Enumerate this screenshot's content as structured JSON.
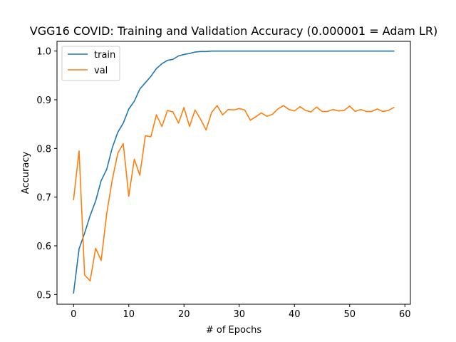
{
  "chart_data": {
    "type": "line",
    "title": "VGG16 COVID: Training and Validation Accuracy (0.000001 = Adam LR)",
    "xlabel": "# of Epochs",
    "ylabel": "Accuracy",
    "xlim": [
      -3,
      61
    ],
    "ylim": [
      0.48,
      1.02
    ],
    "xticks": [
      0,
      10,
      20,
      30,
      40,
      50,
      60
    ],
    "yticks": [
      0.5,
      0.6,
      0.7,
      0.8,
      0.9,
      1.0
    ],
    "xtick_labels": [
      "0",
      "10",
      "20",
      "30",
      "40",
      "50",
      "60"
    ],
    "ytick_labels": [
      "0.5",
      "0.6",
      "0.7",
      "0.8",
      "0.9",
      "1.0"
    ],
    "grid": false,
    "legend_position": "top-left",
    "x": [
      0,
      1,
      2,
      3,
      4,
      5,
      6,
      7,
      8,
      9,
      10,
      11,
      12,
      13,
      14,
      15,
      16,
      17,
      18,
      19,
      20,
      21,
      22,
      23,
      24,
      25,
      26,
      27,
      28,
      29,
      30,
      31,
      32,
      33,
      34,
      35,
      36,
      37,
      38,
      39,
      40,
      41,
      42,
      43,
      44,
      45,
      46,
      47,
      48,
      49,
      50,
      51,
      52,
      53,
      54,
      55,
      56,
      57,
      58
    ],
    "series": [
      {
        "name": "train",
        "color": "#1f77b4",
        "values": [
          0.503,
          0.594,
          0.626,
          0.662,
          0.692,
          0.734,
          0.757,
          0.801,
          0.833,
          0.852,
          0.881,
          0.897,
          0.922,
          0.935,
          0.948,
          0.964,
          0.974,
          0.981,
          0.983,
          0.99,
          0.993,
          0.995,
          0.998,
          0.999,
          0.999,
          1.0,
          1.0,
          1.0,
          1.0,
          1.0,
          1.0,
          1.0,
          1.0,
          1.0,
          1.0,
          1.0,
          1.0,
          1.0,
          1.0,
          1.0,
          1.0,
          1.0,
          1.0,
          1.0,
          1.0,
          1.0,
          1.0,
          1.0,
          1.0,
          1.0,
          1.0,
          1.0,
          1.0,
          1.0,
          1.0,
          1.0,
          1.0,
          1.0,
          1.0
        ]
      },
      {
        "name": "val",
        "color": "#ff7f0e",
        "values": [
          0.695,
          0.795,
          0.54,
          0.528,
          0.595,
          0.57,
          0.666,
          0.735,
          0.79,
          0.81,
          0.702,
          0.778,
          0.745,
          0.826,
          0.824,
          0.869,
          0.845,
          0.878,
          0.875,
          0.852,
          0.884,
          0.845,
          0.879,
          0.86,
          0.838,
          0.874,
          0.888,
          0.869,
          0.88,
          0.879,
          0.882,
          0.879,
          0.858,
          0.865,
          0.873,
          0.866,
          0.87,
          0.881,
          0.888,
          0.88,
          0.877,
          0.886,
          0.878,
          0.875,
          0.885,
          0.876,
          0.876,
          0.88,
          0.877,
          0.878,
          0.887,
          0.876,
          0.88,
          0.876,
          0.876,
          0.881,
          0.876,
          0.878,
          0.884
        ]
      }
    ]
  }
}
